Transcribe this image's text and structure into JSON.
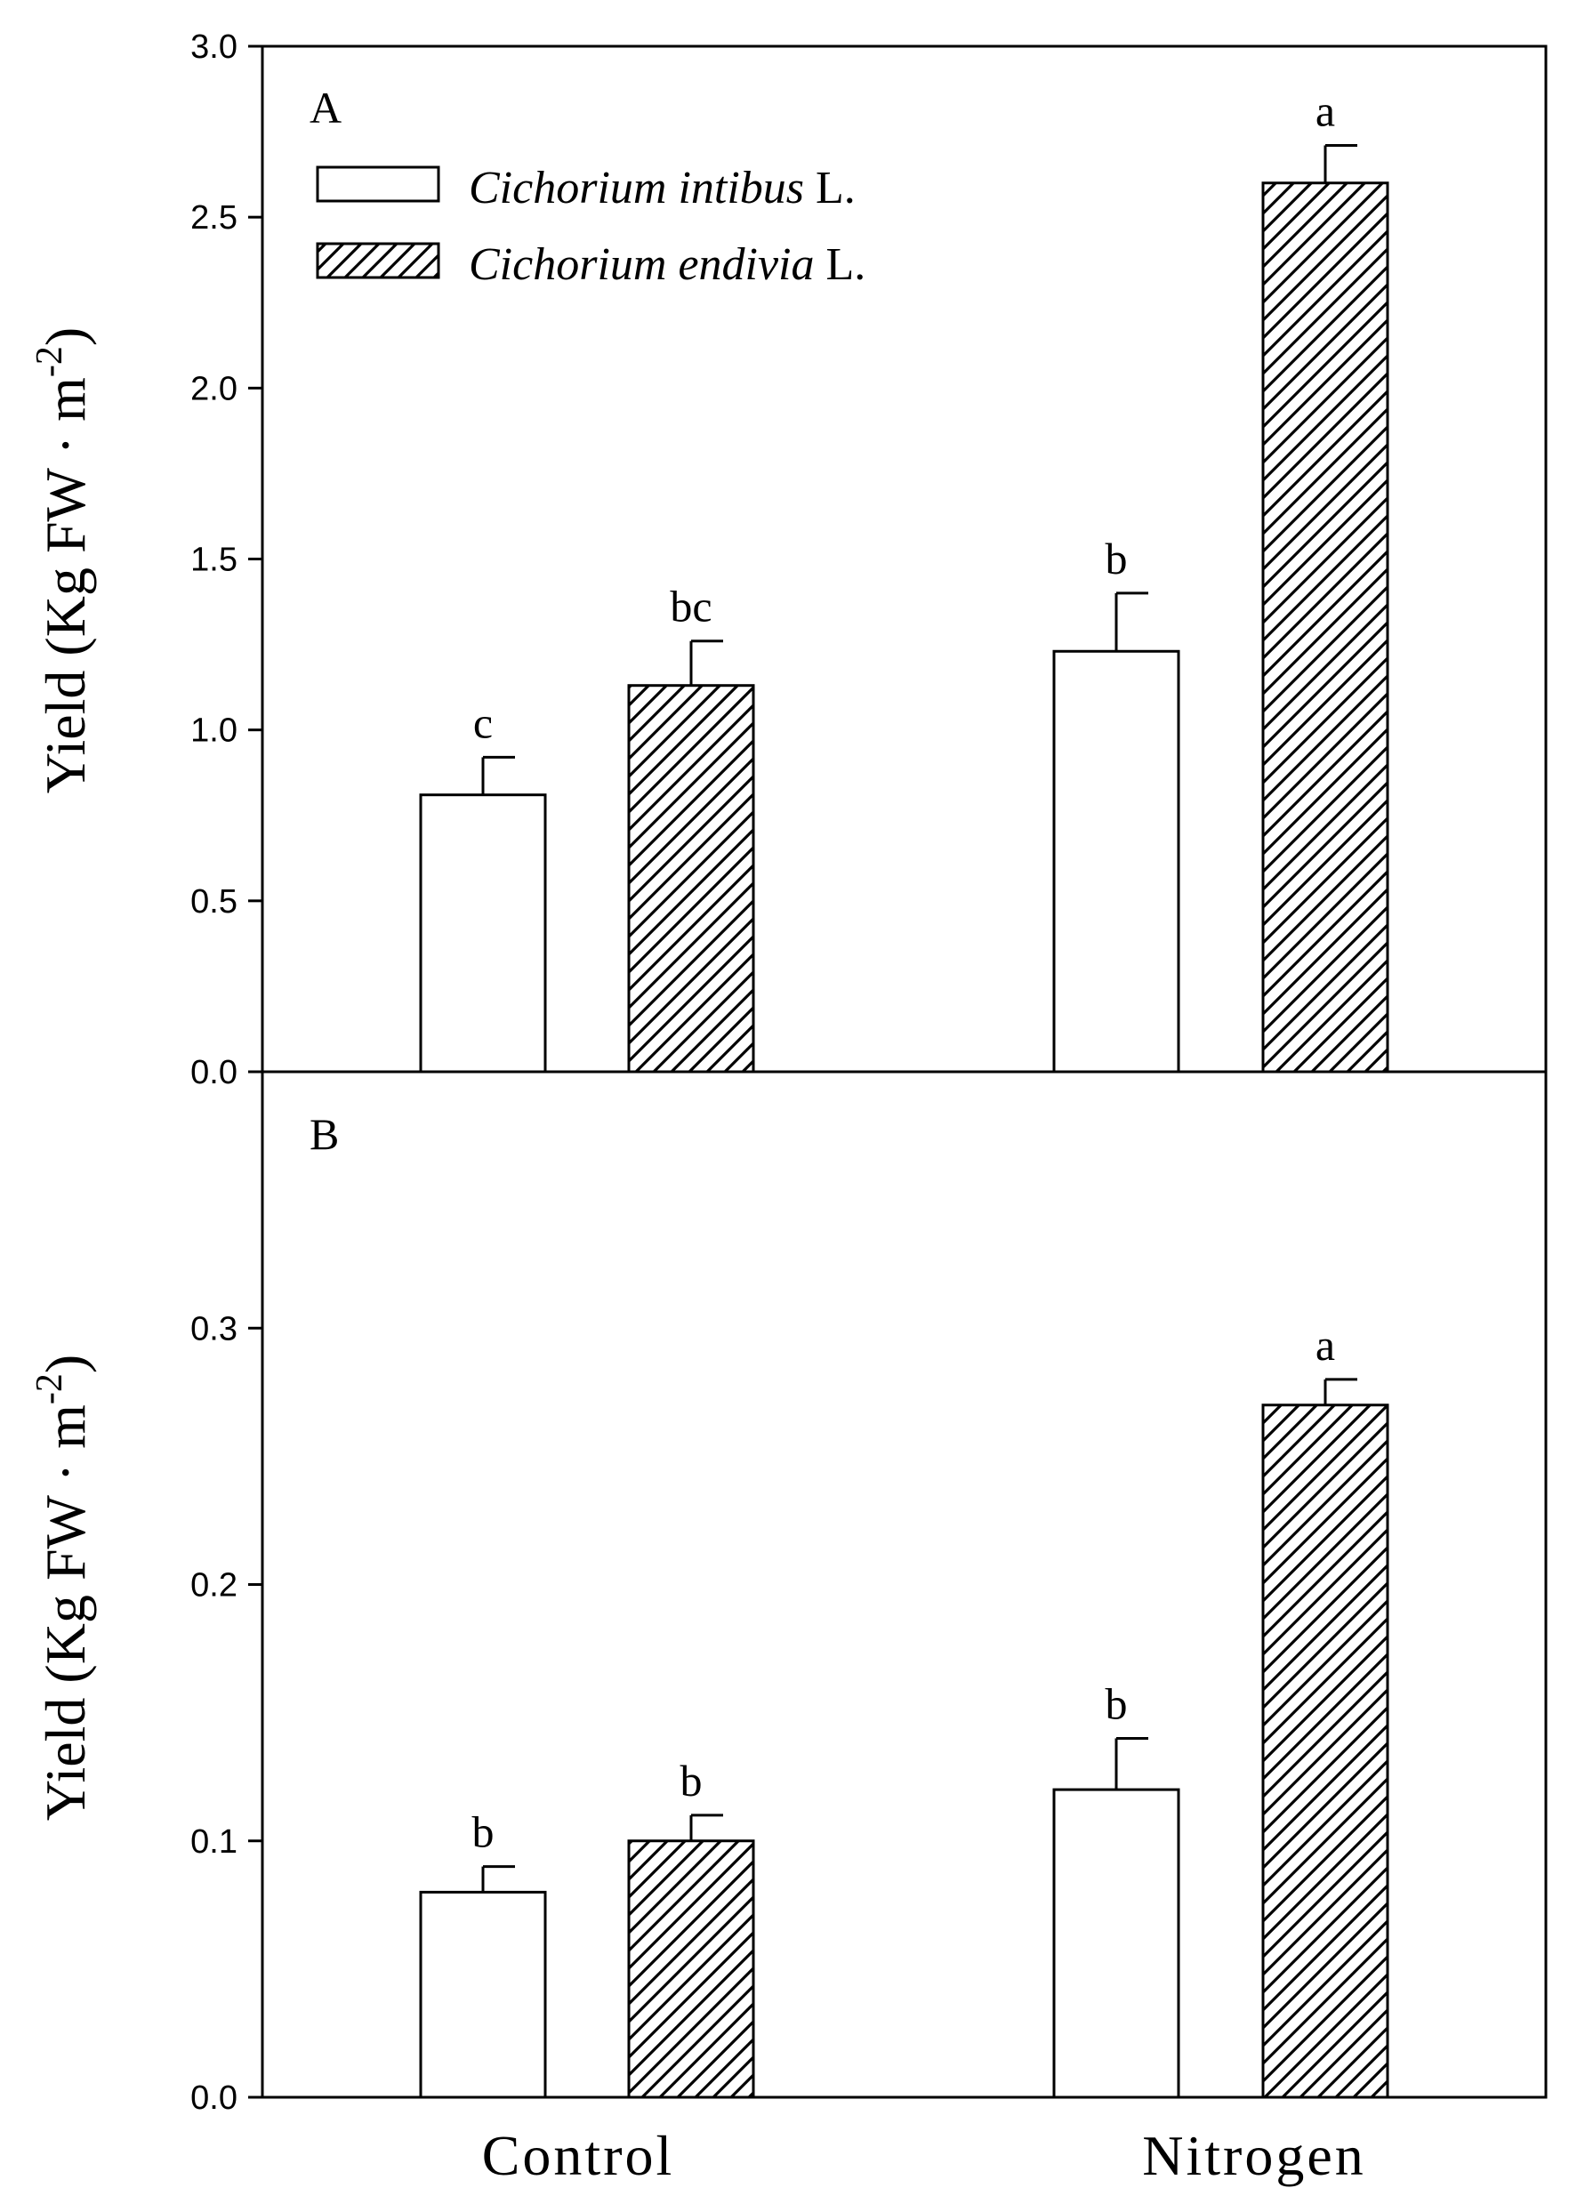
{
  "chart_data": [
    {
      "type": "bar",
      "panel": "A",
      "ylabel": "Yield (Kg FW · m-2)",
      "ylabel_parts": {
        "main": "Yield (Kg FW · m",
        "sup": "-2",
        "close": ")"
      },
      "ylim": [
        0,
        3.0
      ],
      "yticks": [
        0.0,
        0.5,
        1.0,
        1.5,
        2.0,
        2.5,
        3.0
      ],
      "ytick_labels": [
        "0.0",
        "0.5",
        "1.0",
        "1.5",
        "2.0",
        "2.5",
        "3.0"
      ],
      "categories": [
        "Control",
        "Nitrogen"
      ],
      "legend": {
        "position": "top-left",
        "entries": [
          {
            "italic": "Cichorium intibus",
            "suffix": " L."
          },
          {
            "italic": "Cichorium endivia",
            "suffix": " L."
          }
        ]
      },
      "series": [
        {
          "name": "Cichorium intibus L.",
          "pattern": "open",
          "values": [
            0.81,
            1.23
          ],
          "errors": [
            0.11,
            0.17
          ],
          "letters": [
            "c",
            "b"
          ]
        },
        {
          "name": "Cichorium endivia L.",
          "pattern": "hatched",
          "values": [
            1.13,
            2.6
          ],
          "errors": [
            0.13,
            0.11
          ],
          "letters": [
            "bc",
            "a"
          ]
        }
      ]
    },
    {
      "type": "bar",
      "panel": "B",
      "ylabel": "Yield (Kg FW · m-2)",
      "ylabel_parts": {
        "main": "Yield (Kg FW · m",
        "sup": "-2",
        "close": ")"
      },
      "ylim": [
        0,
        0.4
      ],
      "yticks": [
        0.0,
        0.1,
        0.2,
        0.3
      ],
      "ytick_labels": [
        "0.0",
        "0.1",
        "0.2",
        "0.3"
      ],
      "categories": [
        "Control",
        "Nitrogen"
      ],
      "series": [
        {
          "name": "Cichorium intibus L.",
          "pattern": "open",
          "values": [
            0.08,
            0.12
          ],
          "errors": [
            0.01,
            0.02
          ],
          "letters": [
            "b",
            "b"
          ]
        },
        {
          "name": "Cichorium endivia L.",
          "pattern": "hatched",
          "values": [
            0.1,
            0.27
          ],
          "errors": [
            0.01,
            0.01
          ],
          "letters": [
            "b",
            "a"
          ]
        }
      ]
    }
  ],
  "x_category_labels": [
    "Control",
    "Nitrogen"
  ]
}
